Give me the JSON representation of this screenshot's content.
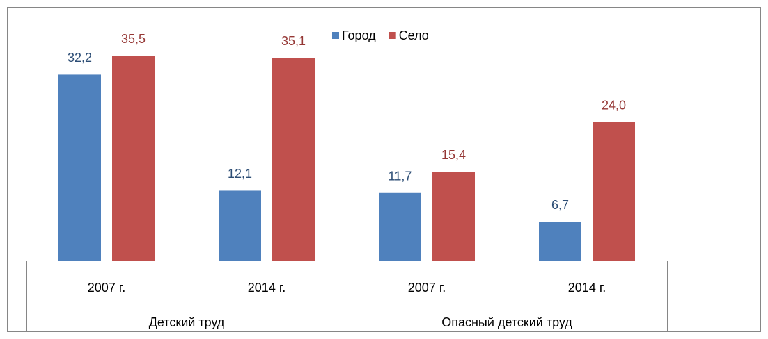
{
  "chart_data": {
    "type": "bar",
    "categories": [
      "2007 г.",
      "2014 г.",
      "2007 г.",
      "2014 г."
    ],
    "groups": [
      "Детский труд",
      "Опасный детский труд"
    ],
    "series": [
      {
        "name": "Город",
        "color": "#4f81bd",
        "values": [
          32.2,
          12.1,
          11.7,
          6.7
        ],
        "value_labels": [
          "32,2",
          "12,1",
          "11,7",
          "6,7"
        ]
      },
      {
        "name": "Село",
        "color": "#c0504d",
        "values": [
          35.5,
          35.1,
          15.4,
          24.0
        ],
        "value_labels": [
          "35,5",
          "35,1",
          "15,4",
          "24,0"
        ]
      }
    ],
    "legend": "top"
  }
}
